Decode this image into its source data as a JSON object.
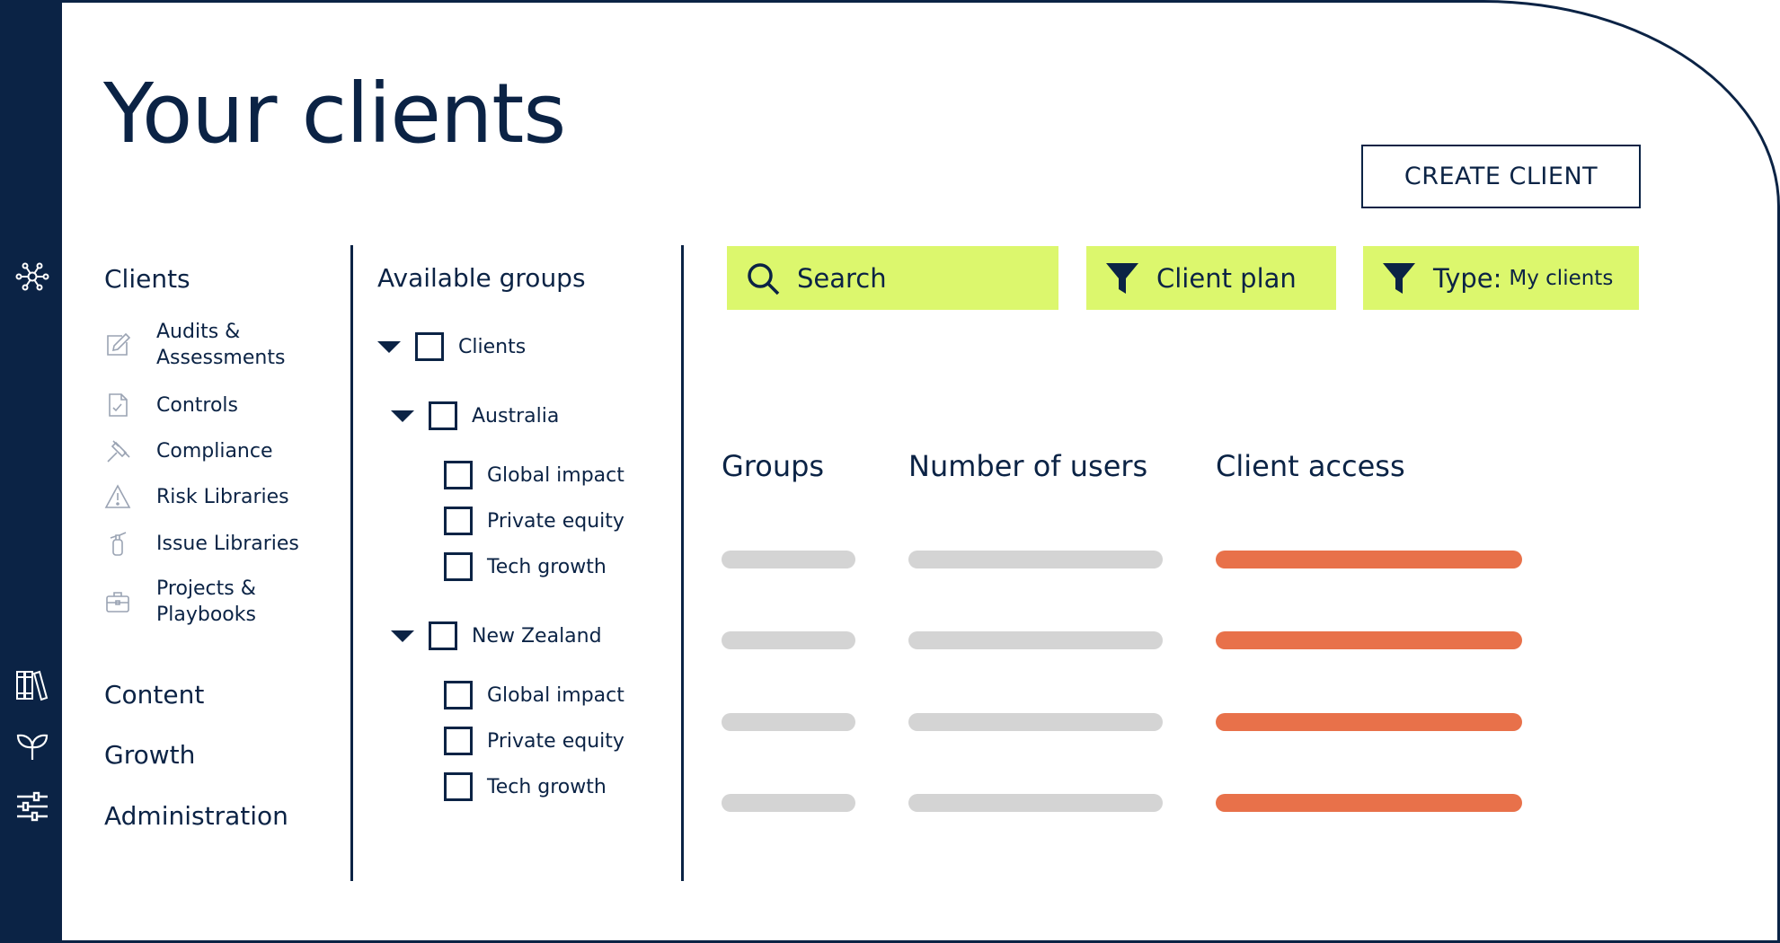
{
  "page": {
    "title": "Your clients",
    "create_label": "CREATE CLIENT"
  },
  "rail": {
    "icons": [
      "network-icon",
      "library-icon",
      "sprout-icon",
      "sliders-icon"
    ]
  },
  "nav": {
    "clients_heading": "Clients",
    "items": [
      {
        "label": "Audits & Assessments",
        "icon": "edit-icon"
      },
      {
        "label": "Controls",
        "icon": "file-check-icon"
      },
      {
        "label": "Compliance",
        "icon": "gavel-icon"
      },
      {
        "label": "Risk Libraries",
        "icon": "warning-icon"
      },
      {
        "label": "Issue Libraries",
        "icon": "extinguisher-icon"
      },
      {
        "label": "Projects & Playbooks",
        "icon": "briefcase-icon"
      }
    ],
    "content_heading": "Content",
    "growth_heading": "Growth",
    "administration_heading": "Administration"
  },
  "groups": {
    "title": "Available groups",
    "root": "Clients",
    "regions": [
      {
        "name": "Australia",
        "children": [
          "Global impact",
          "Private equity",
          "Tech growth"
        ]
      },
      {
        "name": "New Zealand",
        "children": [
          "Global impact",
          "Private equity",
          "Tech growth"
        ]
      }
    ]
  },
  "filters": {
    "search_label": "Search",
    "plan_label": "Client plan",
    "type_label": "Type:",
    "type_value": "My clients"
  },
  "table": {
    "columns": [
      "Groups",
      "Number of users",
      "Client access"
    ],
    "row_count": 4
  },
  "colors": {
    "navy": "#0b2345",
    "lime": "#dcf76d",
    "orange": "#e8714a",
    "placeholder_grey": "#d4d4d4"
  }
}
